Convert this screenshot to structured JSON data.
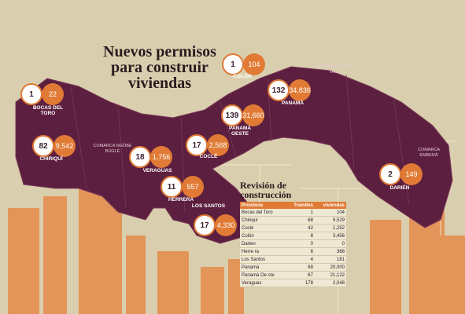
{
  "title": [
    "Nuevos permisos",
    "para construir",
    "viviendas"
  ],
  "provinces": [
    {
      "name": "BOCAS DEL TORO",
      "tramites": "1",
      "viviendas": "22"
    },
    {
      "name": "CHIRIQUÍ",
      "tramites": "82",
      "viviendas": "9,542"
    },
    {
      "name": "VERAGUAS",
      "tramites": "18",
      "viviendas": "1,756"
    },
    {
      "name": "COCLÉ",
      "tramites": "17",
      "viviendas": "2,568"
    },
    {
      "name": "HERRERA",
      "tramites": "11",
      "viviendas": "557"
    },
    {
      "name": "LOS SANTOS",
      "tramites": "17",
      "viviendas": "4,330"
    },
    {
      "name": "COLÓN",
      "tramites": "1",
      "viviendas": "104"
    },
    {
      "name": "PANAMÁ OESTE",
      "tramites": "139",
      "viviendas": "31,660"
    },
    {
      "name": "PANAMÁ",
      "tramites": "132",
      "viviendas": "34,836"
    },
    {
      "name": "DARIÉN",
      "tramites": "2",
      "viviendas": "149"
    }
  ],
  "comarcas": [
    "COMARCA NGÖBE BUGLÉ",
    "COMARCA GUNA YALA",
    "COMARCA EMBERÁ"
  ],
  "table": {
    "title": "Revisión de construcción",
    "headers": [
      "Provincia",
      "Trámites",
      "viviendas"
    ],
    "rows": [
      [
        "Bocas del Toro",
        "1",
        "104"
      ],
      [
        "Chiriquí",
        "68",
        "9,529"
      ],
      [
        "Coclé",
        "42",
        "1,252"
      ],
      [
        "Colón",
        "8",
        "3,456"
      ],
      [
        "Darien",
        "0",
        "0"
      ],
      [
        "Herre ra",
        "6",
        "368"
      ],
      [
        "Los Santos",
        "4",
        "181"
      ],
      [
        "Panamá",
        "68",
        "20,000"
      ],
      [
        "Panamá Oe ste",
        "67",
        "21,122"
      ],
      [
        "Veraguas",
        "178",
        "2,048"
      ]
    ]
  }
}
